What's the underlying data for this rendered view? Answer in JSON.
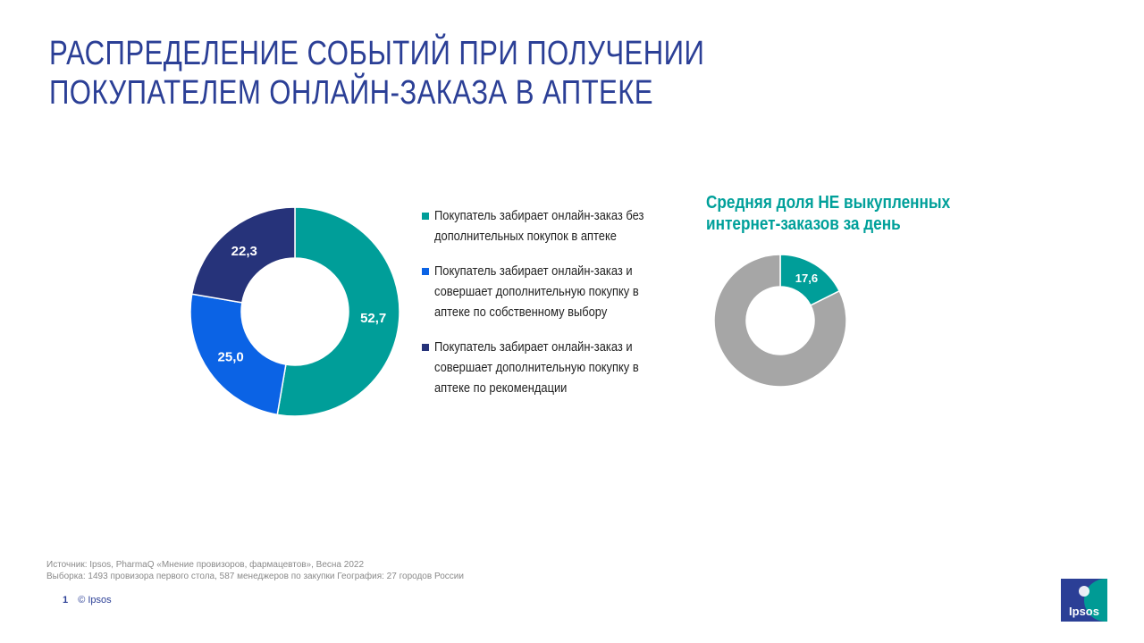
{
  "title": {
    "line1": "РАСПРЕДЕЛЕНИЕ СОБЫТИЙ ПРИ ПОЛУЧЕНИИ",
    "line2": "ПОКУПАТЕЛЕМ ОНЛАЙН-ЗАКАЗА В АПТЕКЕ"
  },
  "chart_data": [
    {
      "type": "pie",
      "donut": true,
      "categories": [
        "Покупатель забирает онлайн-заказ без дополнительных покупок в аптеке",
        "Покупатель забирает онлайн-заказ и совершает дополнительную покупку в аптеке по собственному выбору",
        "Покупатель забирает онлайн-заказ и совершает дополнительную покупку в аптеке по рекомендации"
      ],
      "values": [
        52.7,
        25.0,
        22.3
      ],
      "labels": [
        "52,7",
        "25,0",
        "22,3"
      ],
      "colors": [
        "#009E99",
        "#0B63E5",
        "#26337A"
      ],
      "legend": "right"
    },
    {
      "type": "pie",
      "donut": true,
      "title": "Средняя доля НЕ выкупленных интернет-заказов за день",
      "values": [
        17.6,
        82.4
      ],
      "labels": [
        "17,6",
        ""
      ],
      "colors": [
        "#009E99",
        "#A6A6A6"
      ]
    }
  ],
  "legend": {
    "items": [
      {
        "line1": "Покупатель забирает онлайн-заказ без",
        "line2": "дополнительных покупок в аптеке",
        "color": "#009E99"
      },
      {
        "line1": "Покупатель забирает онлайн-заказ и",
        "line2": "совершает дополнительную покупку в",
        "line3": "аптеке по собственному выбору",
        "color": "#0B63E5"
      },
      {
        "line1": "Покупатель забирает онлайн-заказ и",
        "line2": "совершает дополнительную покупку в",
        "line3": "аптеке по рекомендации",
        "color": "#26337A"
      }
    ]
  },
  "right_chart": {
    "title_line1": "Средняя доля НЕ выкупленных",
    "title_line2": "интернет-заказов за день"
  },
  "footnote": {
    "source": "Источник: Ipsos, PharmaQ «Мнение провизоров, фармацевтов», Весна 2022",
    "sample": "Выборка: 1493 провизора первого стола, 587 менеджеров по закупки География: 27 городов России"
  },
  "footer": {
    "page_number": "1",
    "copyright": "© Ipsos"
  },
  "logo": {
    "text": "Ipsos"
  },
  "colors": {
    "title": "#2B3F96",
    "accent": "#009E99"
  }
}
